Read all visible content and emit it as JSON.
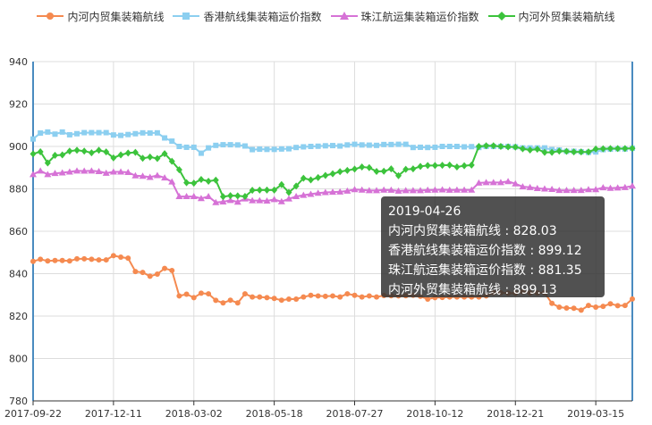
{
  "legend": [
    {
      "name": "内河内贸集装箱航线",
      "color": "#f58a50",
      "marker": "circle"
    },
    {
      "name": "香港航线集装箱运价指数",
      "color": "#8ccff0",
      "marker": "square"
    },
    {
      "name": "珠江航运集装箱运价指数",
      "color": "#d672d6",
      "marker": "triangle"
    },
    {
      "name": "内河外贸集装箱航线",
      "color": "#3cc33c",
      "marker": "diamond"
    }
  ],
  "tooltip": {
    "date": "2019-04-26",
    "rows": [
      {
        "label": "内河内贸集装箱航线",
        "value": "828.03"
      },
      {
        "label": "香港航线集装箱运价指数",
        "value": "899.12"
      },
      {
        "label": "珠江航运集装箱运价指数",
        "value": "881.35"
      },
      {
        "label": "内河外贸集装箱航线",
        "value": "899.13"
      }
    ]
  },
  "chart_data": {
    "type": "line",
    "ylim": [
      780,
      940
    ],
    "y_ticks": [
      780,
      800,
      820,
      840,
      860,
      880,
      900,
      920,
      940
    ],
    "x_tick_labels": [
      "2017-09-22",
      "2017-12-11",
      "2018-03-02",
      "2018-05-18",
      "2018-07-27",
      "2018-10-12",
      "2018-12-21",
      "2019-03-15"
    ],
    "point_count": 83,
    "x_tick_indices": [
      0,
      11,
      22,
      33,
      44,
      55,
      66,
      77
    ],
    "grid": true,
    "legend_position": "top",
    "series": [
      {
        "name": "内河内贸集装箱航线",
        "color": "#f58a50",
        "marker": "circle",
        "values": [
          845.8,
          846.8,
          846,
          846.2,
          846.2,
          846,
          847,
          847,
          846.8,
          846.5,
          846.5,
          848.5,
          847.8,
          847.3,
          841,
          840.6,
          838.8,
          839.8,
          842.5,
          841.5,
          829.5,
          830.3,
          828.7,
          830.8,
          830.5,
          827.4,
          826.2,
          827.5,
          826.2,
          830.5,
          829,
          829,
          828.7,
          828.3,
          827.5,
          828,
          828,
          829,
          829.8,
          829.5,
          829.3,
          829.5,
          829,
          830.5,
          829.8,
          829,
          829.5,
          829,
          829.7,
          829.6,
          829.5,
          829.6,
          829.8,
          829.3,
          828,
          828.7,
          828.8,
          829,
          829,
          829,
          829,
          829,
          829.5,
          831,
          831,
          830.8,
          830.8,
          831.5,
          830.9,
          830.9,
          831,
          826,
          824.2,
          823.8,
          823.7,
          822.8,
          825,
          824.2,
          824.6,
          825.8,
          824.9,
          825,
          828.03
        ]
      },
      {
        "name": "香港航线集装箱运价指数",
        "color": "#8ccff0",
        "marker": "square",
        "values": [
          903.5,
          906.3,
          906.8,
          905.8,
          906.8,
          905.5,
          906,
          906.5,
          906.5,
          906.5,
          906.5,
          905.4,
          905.2,
          905.6,
          906,
          906.4,
          906.3,
          906.4,
          904,
          902.5,
          900,
          899.6,
          899.6,
          896.8,
          899.3,
          900.5,
          900.8,
          900.8,
          900.7,
          900.2,
          898.5,
          898.7,
          898.6,
          898.6,
          898.8,
          898.9,
          899.5,
          899.8,
          900,
          900.1,
          900.3,
          900.4,
          900.2,
          900.7,
          901,
          900.7,
          900.6,
          900.5,
          900.9,
          900.9,
          901,
          901,
          899.5,
          899.6,
          899.5,
          899.6,
          900,
          900,
          900,
          899.8,
          899.9,
          899.5,
          900,
          900,
          900,
          900,
          899.8,
          899.3,
          899.3,
          899.3,
          899.3,
          898.5,
          898.3,
          897.7,
          897.7,
          897.5,
          897.2,
          897.4,
          898.5,
          898.7,
          898.9,
          898.8,
          899.12
        ]
      },
      {
        "name": "珠江航运集装箱运价指数",
        "color": "#d672d6",
        "marker": "triangle",
        "values": [
          886.8,
          888.5,
          886.8,
          887.3,
          887.6,
          888,
          888.5,
          888.4,
          888.5,
          888.2,
          887.4,
          888,
          888,
          887.8,
          886.2,
          886,
          885.5,
          886.3,
          885.2,
          883.3,
          876.4,
          876.4,
          876.4,
          875.5,
          876.4,
          873.6,
          873.9,
          874.6,
          873.8,
          875.3,
          874.5,
          874.5,
          874.3,
          875,
          874,
          875.3,
          876.4,
          877,
          877.5,
          878,
          878.3,
          878.5,
          878.6,
          879,
          879.7,
          879.5,
          879.2,
          879.2,
          879.5,
          879.4,
          879,
          879.2,
          879.2,
          879.2,
          879.4,
          879.5,
          879.6,
          879.4,
          879.5,
          879.5,
          879.5,
          882.8,
          883,
          883,
          883,
          883.5,
          882.4,
          881,
          880.7,
          880.2,
          880,
          879.8,
          879.3,
          879.3,
          879.3,
          879.3,
          879.7,
          879.7,
          880.6,
          880.3,
          880.5,
          880.7,
          881.35
        ]
      },
      {
        "name": "内河外贸集装箱航线",
        "color": "#3cc33c",
        "marker": "diamond",
        "values": [
          896.5,
          897.5,
          892.2,
          895.8,
          896,
          897.8,
          898.2,
          897.8,
          897,
          898.2,
          897.4,
          894.6,
          896,
          896.9,
          897.2,
          894.4,
          895,
          894.3,
          896.6,
          893,
          889,
          882.9,
          882.7,
          884.4,
          883.6,
          884.1,
          876.3,
          876.8,
          876.7,
          876.4,
          879.3,
          879.4,
          879.4,
          879.4,
          882,
          878.3,
          881.3,
          885,
          884.2,
          885.3,
          886.3,
          887.1,
          888.1,
          888.7,
          889.3,
          890.3,
          890,
          888.2,
          888.3,
          889.4,
          886.2,
          889.2,
          889.4,
          890.6,
          891,
          891,
          891.1,
          891.2,
          890.3,
          890.9,
          891.2,
          900,
          900.3,
          900.3,
          900,
          899.8,
          899.7,
          898.9,
          898.3,
          898.7,
          897.2,
          897.2,
          897.8,
          897.7,
          897.4,
          897.4,
          897.4,
          898.8,
          898.9,
          899,
          899,
          899,
          899.13
        ]
      }
    ]
  }
}
